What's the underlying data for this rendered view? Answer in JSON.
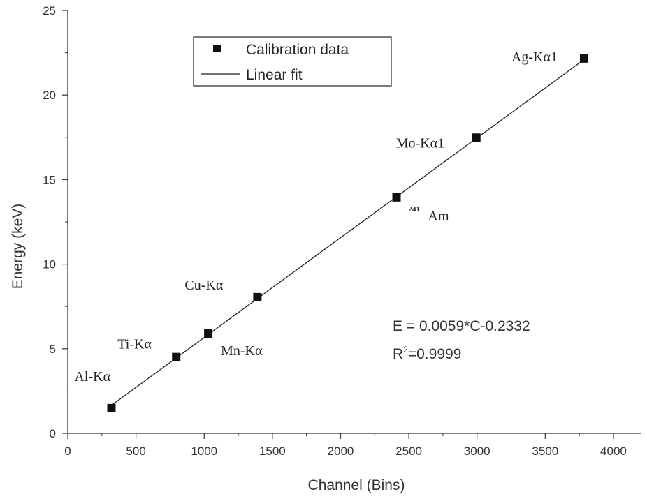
{
  "chart_data": {
    "type": "scatter",
    "xlabel": "Channel (Bins)",
    "ylabel": "Energy (keV)",
    "xlim": [
      0,
      4200
    ],
    "ylim": [
      0,
      25
    ],
    "xticks": [
      0,
      500,
      1000,
      1500,
      2000,
      2500,
      3000,
      3500,
      4000
    ],
    "yticks": [
      0,
      5,
      10,
      15,
      20,
      25
    ],
    "grid": false,
    "legend_position": "top-left",
    "legend": [
      {
        "name": "Calibration data",
        "kind": "marker"
      },
      {
        "name": "Linear fit",
        "kind": "line"
      }
    ],
    "series": [
      {
        "name": "Calibration data",
        "points": [
          {
            "x": 320,
            "y": 1.49,
            "label": "Al-Kα"
          },
          {
            "x": 795,
            "y": 4.51,
            "label": "Ti-Kα"
          },
          {
            "x": 1030,
            "y": 5.9,
            "label": "Mn-Kα"
          },
          {
            "x": 1390,
            "y": 8.05,
            "label": "Cu-Kα"
          },
          {
            "x": 2410,
            "y": 13.95,
            "label": "Am",
            "label_sup": "241"
          },
          {
            "x": 2995,
            "y": 17.48,
            "label": "Mo-Kα1"
          },
          {
            "x": 3785,
            "y": 22.16,
            "label": "Ag-Kα1"
          }
        ]
      },
      {
        "name": "Linear fit",
        "slope": 0.0059,
        "intercept": -0.2332,
        "x_range": [
          320,
          3785
        ]
      }
    ],
    "annotations": {
      "equation": "E = 0.0059*C-0.2332",
      "r2_prefix": "R",
      "r2_sup": "2",
      "r2_value": "=0.9999"
    }
  }
}
